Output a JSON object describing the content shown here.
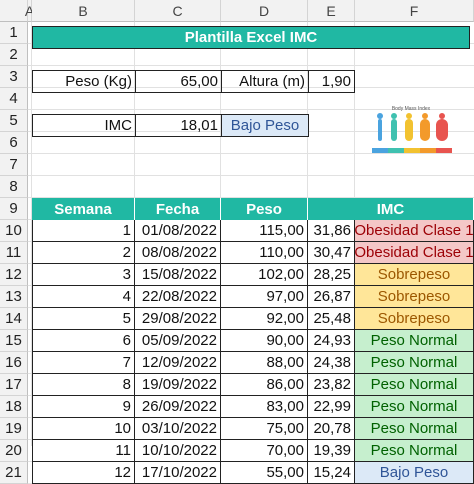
{
  "columns": [
    "A",
    "B",
    "C",
    "D",
    "E",
    "F"
  ],
  "rows": [
    "1",
    "2",
    "3",
    "4",
    "5",
    "6",
    "7",
    "8",
    "9",
    "10",
    "11",
    "12",
    "13",
    "14",
    "15",
    "16",
    "17",
    "18",
    "19",
    "20",
    "21"
  ],
  "title": "Plantilla Excel IMC",
  "inputs": {
    "peso_label": "Peso (Kg)",
    "peso_value": "65,00",
    "altura_label": "Altura (m)",
    "altura_value": "1,90",
    "imc_label": "IMC",
    "imc_value": "18,01",
    "imc_status": "Bajo Peso"
  },
  "bmi_image_caption": "Body Mass Index",
  "table": {
    "headers": [
      "Semana",
      "Fecha",
      "Peso",
      "IMC"
    ],
    "rows": [
      {
        "semana": "1",
        "fecha": "01/08/2022",
        "peso": "115,00",
        "imc": "31,86",
        "status": "Obesidad Clase 1"
      },
      {
        "semana": "2",
        "fecha": "08/08/2022",
        "peso": "110,00",
        "imc": "30,47",
        "status": "Obesidad Clase 1"
      },
      {
        "semana": "3",
        "fecha": "15/08/2022",
        "peso": "102,00",
        "imc": "28,25",
        "status": "Sobrepeso"
      },
      {
        "semana": "4",
        "fecha": "22/08/2022",
        "peso": "97,00",
        "imc": "26,87",
        "status": "Sobrepeso"
      },
      {
        "semana": "5",
        "fecha": "29/08/2022",
        "peso": "92,00",
        "imc": "25,48",
        "status": "Sobrepeso"
      },
      {
        "semana": "6",
        "fecha": "05/09/2022",
        "peso": "90,00",
        "imc": "24,93",
        "status": "Peso Normal"
      },
      {
        "semana": "7",
        "fecha": "12/09/2022",
        "peso": "88,00",
        "imc": "24,38",
        "status": "Peso Normal"
      },
      {
        "semana": "8",
        "fecha": "19/09/2022",
        "peso": "86,00",
        "imc": "23,82",
        "status": "Peso Normal"
      },
      {
        "semana": "9",
        "fecha": "26/09/2022",
        "peso": "83,00",
        "imc": "22,99",
        "status": "Peso Normal"
      },
      {
        "semana": "10",
        "fecha": "03/10/2022",
        "peso": "75,00",
        "imc": "20,78",
        "status": "Peso Normal"
      },
      {
        "semana": "11",
        "fecha": "10/10/2022",
        "peso": "70,00",
        "imc": "19,39",
        "status": "Peso Normal"
      },
      {
        "semana": "12",
        "fecha": "17/10/2022",
        "peso": "55,00",
        "imc": "15,24",
        "status": "Bajo Peso"
      }
    ]
  },
  "colors": {
    "header_teal": "#20b8a3",
    "obesidad_bg": "#f4c7c7",
    "obesidad_fg": "#9c0006",
    "sobrepeso_bg": "#ffe699",
    "sobrepeso_fg": "#9c5700",
    "normal_bg": "#c6efce",
    "normal_fg": "#006100",
    "bajo_bg": "#dce9f7",
    "bajo_fg": "#2f5597"
  }
}
